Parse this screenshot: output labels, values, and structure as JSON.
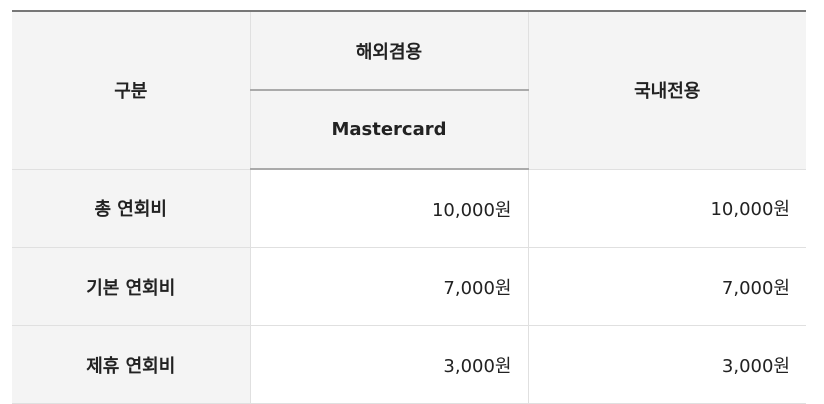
{
  "headers": {
    "category": "구분",
    "overseas": "해외겸용",
    "brand": "Mastercard",
    "domestic": "국내전용"
  },
  "rows": [
    {
      "label": "총 연회비",
      "overseas": "10,000원",
      "domestic": "10,000원"
    },
    {
      "label": "기본 연회비",
      "overseas": "7,000원",
      "domestic": "7,000원"
    },
    {
      "label": "제휴 연회비",
      "overseas": "3,000원",
      "domestic": "3,000원"
    }
  ]
}
